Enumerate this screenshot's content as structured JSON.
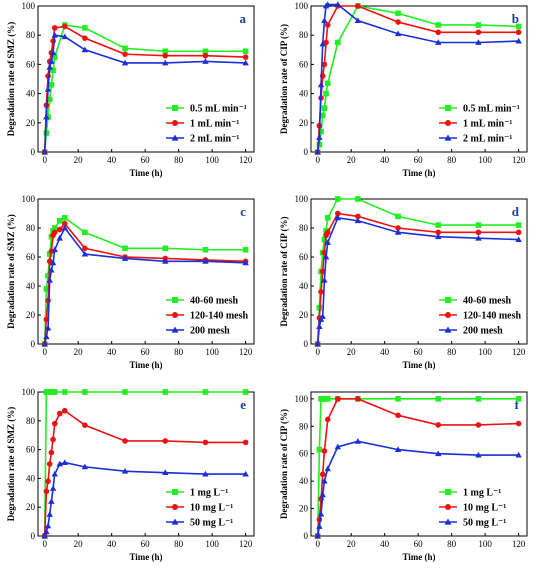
{
  "chart_data": [
    {
      "type": "line",
      "panel_label": "a",
      "xlabel": "Time (h)",
      "ylabel": "Degradation rate of SMZ (%)",
      "xlim": [
        -4,
        125
      ],
      "ylim": [
        0,
        100
      ],
      "xticks": [
        0,
        20,
        40,
        60,
        80,
        100,
        120
      ],
      "yticks": [
        0,
        20,
        40,
        60,
        80,
        100
      ],
      "legend_position": "lower-right",
      "series": [
        {
          "name": "0.5 mL min⁻¹",
          "color": "#22ee22",
          "marker": "square",
          "x": [
            0,
            1,
            2,
            3,
            4,
            5,
            6,
            12,
            24,
            48,
            72,
            96,
            120
          ],
          "y": [
            0,
            13,
            24,
            36,
            46,
            56,
            65,
            87,
            85,
            71,
            69,
            69,
            69
          ]
        },
        {
          "name": "1 mL min⁻¹",
          "color": "#ee1111",
          "marker": "circle",
          "x": [
            0,
            1,
            2,
            3,
            4,
            5,
            6,
            12,
            24,
            48,
            72,
            96,
            120
          ],
          "y": [
            0,
            32,
            52,
            62,
            68,
            76,
            85,
            86,
            78,
            67,
            66,
            66,
            65
          ]
        },
        {
          "name": "2 mL min⁻¹",
          "color": "#1a2fd6",
          "marker": "triangle",
          "x": [
            0,
            1,
            2,
            3,
            4,
            5,
            6,
            12,
            24,
            48,
            72,
            96,
            120
          ],
          "y": [
            0,
            24,
            43,
            58,
            62,
            68,
            80,
            79,
            70,
            61,
            61,
            62,
            61
          ]
        }
      ]
    },
    {
      "type": "line",
      "panel_label": "b",
      "xlabel": "Time (h)",
      "ylabel": "Degradation rate of CIP (%)",
      "xlim": [
        -4,
        125
      ],
      "ylim": [
        0,
        100
      ],
      "xticks": [
        0,
        20,
        40,
        60,
        80,
        100,
        120
      ],
      "yticks": [
        0,
        20,
        40,
        60,
        80,
        100
      ],
      "legend_position": "lower-right",
      "series": [
        {
          "name": "0.5 mL min⁻¹",
          "color": "#22ee22",
          "marker": "square",
          "x": [
            0,
            1,
            2,
            3,
            4,
            5,
            6,
            12,
            24,
            48,
            72,
            96,
            120
          ],
          "y": [
            0,
            5,
            14,
            25,
            30,
            40,
            47,
            75,
            100,
            95,
            87,
            87,
            86
          ]
        },
        {
          "name": "1 mL min⁻¹",
          "color": "#ee1111",
          "marker": "circle",
          "x": [
            0,
            1,
            2,
            3,
            4,
            5,
            6,
            12,
            24,
            48,
            72,
            96,
            120
          ],
          "y": [
            0,
            18,
            37,
            52,
            60,
            75,
            87,
            100,
            100,
            89,
            82,
            82,
            82
          ]
        },
        {
          "name": "2 mL min⁻¹",
          "color": "#1a2fd6",
          "marker": "triangle",
          "x": [
            0,
            1,
            2,
            3,
            4,
            5,
            6,
            12,
            24,
            48,
            72,
            96,
            120
          ],
          "y": [
            0,
            10,
            46,
            74,
            90,
            100,
            101,
            101,
            90,
            81,
            75,
            75,
            76
          ]
        }
      ]
    },
    {
      "type": "line",
      "panel_label": "c",
      "xlabel": "Time (h)",
      "ylabel": "Degradation rate of SMZ (%)",
      "xlim": [
        -4,
        125
      ],
      "ylim": [
        0,
        100
      ],
      "xticks": [
        0,
        20,
        40,
        60,
        80,
        100,
        120
      ],
      "yticks": [
        0,
        20,
        40,
        60,
        80,
        100
      ],
      "legend_position": "lower-right",
      "series": [
        {
          "name": "40-60 mesh",
          "color": "#22ee22",
          "marker": "square",
          "x": [
            0,
            1,
            2,
            3,
            4,
            5,
            6,
            9,
            12,
            24,
            48,
            72,
            96,
            120
          ],
          "y": [
            0,
            38,
            47,
            62,
            74,
            78,
            80,
            85,
            87,
            77,
            66,
            66,
            65,
            65
          ]
        },
        {
          "name": "120-140 mesh",
          "color": "#ee1111",
          "marker": "circle",
          "x": [
            0,
            1,
            2,
            3,
            4,
            5,
            6,
            9,
            12,
            24,
            48,
            72,
            96,
            120
          ],
          "y": [
            0,
            17,
            30,
            57,
            64,
            75,
            77,
            79,
            83,
            66,
            60,
            59,
            58,
            57
          ]
        },
        {
          "name": "200 mesh",
          "color": "#1a2fd6",
          "marker": "triangle",
          "x": [
            0,
            1,
            2,
            3,
            4,
            5,
            6,
            9,
            12,
            24,
            48,
            72,
            96,
            120
          ],
          "y": [
            0,
            5,
            11,
            44,
            51,
            56,
            65,
            73,
            80,
            62,
            59,
            57,
            57,
            56
          ]
        }
      ]
    },
    {
      "type": "line",
      "panel_label": "d",
      "xlabel": "Time (h)",
      "ylabel": "Degradation rate of CIP (%)",
      "xlim": [
        -4,
        125
      ],
      "ylim": [
        0,
        100
      ],
      "xticks": [
        0,
        20,
        40,
        60,
        80,
        100,
        120
      ],
      "yticks": [
        0,
        20,
        40,
        60,
        80,
        100
      ],
      "legend_position": "lower-right",
      "series": [
        {
          "name": "40-60 mesh",
          "color": "#22ee22",
          "marker": "square",
          "x": [
            0,
            1,
            2,
            3,
            4,
            5,
            6,
            12,
            24,
            48,
            72,
            96,
            120
          ],
          "y": [
            0,
            25,
            50,
            63,
            72,
            78,
            87,
            100,
            100,
            88,
            82,
            82,
            82
          ]
        },
        {
          "name": "120-140 mesh",
          "color": "#ee1111",
          "marker": "circle",
          "x": [
            0,
            1,
            2,
            3,
            4,
            5,
            6,
            12,
            24,
            48,
            72,
            96,
            120
          ],
          "y": [
            0,
            18,
            36,
            50,
            63,
            75,
            77,
            90,
            88,
            80,
            77,
            77,
            77
          ]
        },
        {
          "name": "200 mesh",
          "color": "#1a2fd6",
          "marker": "triangle",
          "x": [
            0,
            1,
            2,
            3,
            4,
            5,
            6,
            12,
            24,
            48,
            72,
            96,
            120
          ],
          "y": [
            0,
            12,
            17,
            19,
            44,
            60,
            70,
            87,
            85,
            77,
            74,
            73,
            72
          ]
        }
      ]
    },
    {
      "type": "line",
      "panel_label": "e",
      "xlabel": "Time (h)",
      "ylabel": "Degradation rate of SMZ (%)",
      "xlim": [
        -4,
        125
      ],
      "ylim": [
        0,
        100
      ],
      "xticks": [
        0,
        20,
        40,
        60,
        80,
        100,
        120
      ],
      "yticks": [
        0,
        20,
        40,
        60,
        80,
        100
      ],
      "legend_position": "lower-right",
      "series": [
        {
          "name": "1 mg L⁻¹",
          "color": "#22ee22",
          "marker": "square",
          "x": [
            0,
            1,
            2,
            3,
            4,
            5,
            6,
            12,
            24,
            48,
            72,
            96,
            120
          ],
          "y": [
            0,
            100,
            100,
            100,
            100,
            100,
            100,
            100,
            100,
            100,
            100,
            100,
            100
          ]
        },
        {
          "name": "10 mg L⁻¹",
          "color": "#ee1111",
          "marker": "circle",
          "x": [
            0,
            1,
            2,
            3,
            4,
            5,
            6,
            9,
            12,
            24,
            48,
            72,
            96,
            120
          ],
          "y": [
            0,
            31,
            38,
            50,
            58,
            67,
            78,
            85,
            87,
            77,
            66,
            66,
            65,
            65
          ]
        },
        {
          "name": "50 mg L⁻¹",
          "color": "#1a2fd6",
          "marker": "triangle",
          "x": [
            0,
            1,
            2,
            3,
            4,
            5,
            6,
            9,
            12,
            24,
            48,
            72,
            96,
            120
          ],
          "y": [
            0,
            3,
            7,
            15,
            24,
            33,
            43,
            50,
            51,
            48,
            45,
            44,
            43,
            43
          ]
        }
      ]
    },
    {
      "type": "line",
      "panel_label": "f",
      "xlabel": "Time (h)",
      "ylabel": "Degradation rate of CIP (%)",
      "xlim": [
        -4,
        125
      ],
      "ylim": [
        0,
        105
      ],
      "xticks": [
        0,
        20,
        40,
        60,
        80,
        100,
        120
      ],
      "yticks": [
        0,
        20,
        40,
        60,
        80,
        100
      ],
      "legend_position": "lower-right",
      "series": [
        {
          "name": "1 mg L⁻¹",
          "color": "#22ee22",
          "marker": "square",
          "x": [
            0,
            1,
            2,
            3,
            4,
            5,
            6,
            12,
            24,
            48,
            72,
            96,
            120
          ],
          "y": [
            0,
            63,
            100,
            100,
            100,
            100,
            100,
            100,
            100,
            100,
            100,
            100,
            100
          ]
        },
        {
          "name": "10 mg L⁻¹",
          "color": "#ee1111",
          "marker": "circle",
          "x": [
            0,
            1,
            2,
            3,
            4,
            6,
            12,
            24,
            48,
            72,
            96,
            120
          ],
          "y": [
            0,
            12,
            27,
            45,
            62,
            85,
            100,
            100,
            88,
            81,
            81,
            82
          ]
        },
        {
          "name": "50 mg L⁻¹",
          "color": "#1a2fd6",
          "marker": "triangle",
          "x": [
            0,
            1,
            2,
            3,
            4,
            6,
            12,
            24,
            48,
            72,
            96,
            120
          ],
          "y": [
            0,
            7,
            16,
            30,
            40,
            49,
            65,
            69,
            63,
            60,
            59,
            59
          ]
        }
      ]
    }
  ]
}
